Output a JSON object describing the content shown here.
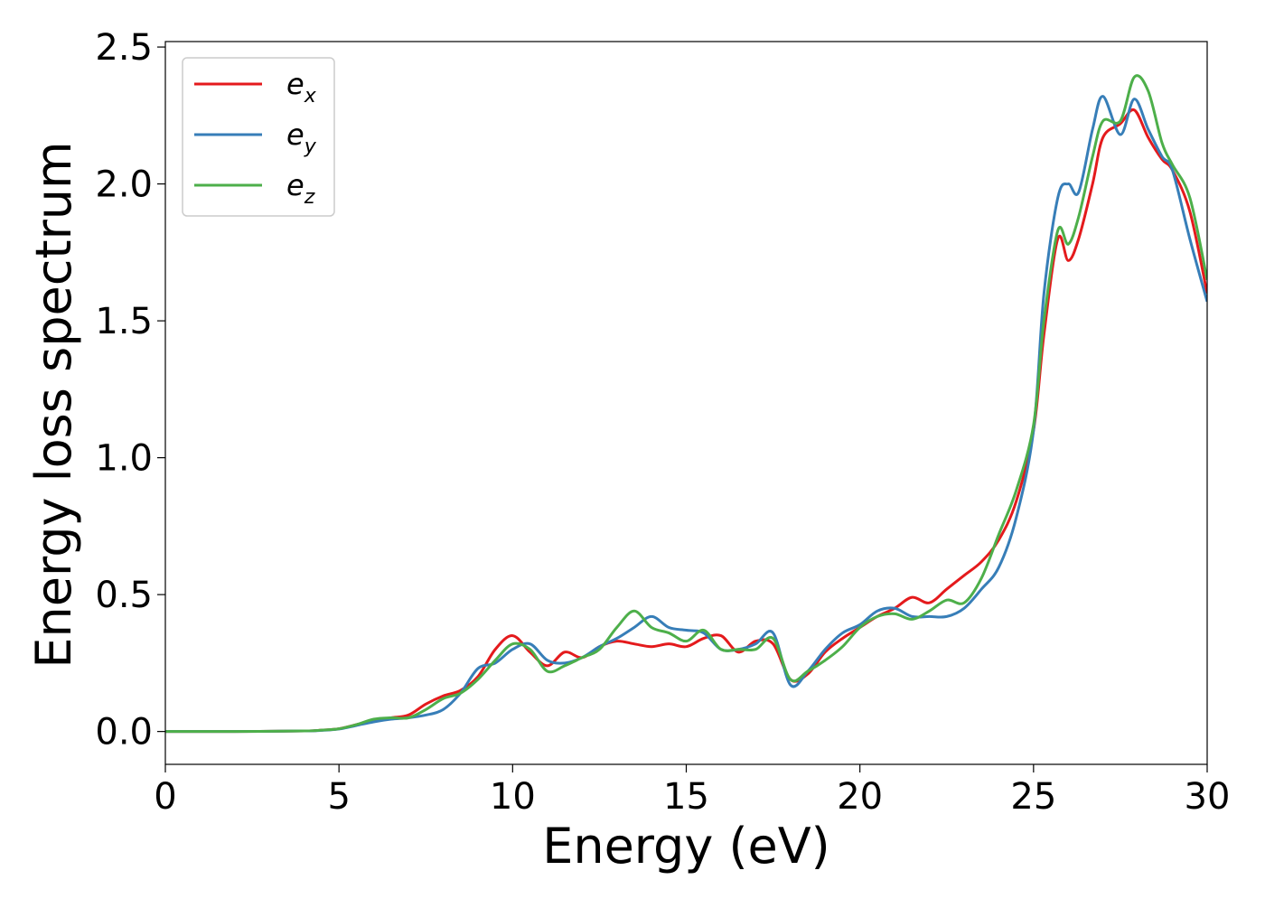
{
  "chart_data": {
    "type": "line",
    "xlabel": "Energy (eV)",
    "ylabel": "Energy loss spectrum",
    "xlim": [
      0,
      30
    ],
    "ylim": [
      -0.12,
      2.52
    ],
    "xticks": [
      0,
      5,
      10,
      15,
      20,
      25,
      30
    ],
    "xtick_labels": [
      "0",
      "5",
      "10",
      "15",
      "20",
      "25",
      "30"
    ],
    "yticks": [
      0.0,
      0.5,
      1.0,
      1.5,
      2.0,
      2.5
    ],
    "ytick_labels": [
      "0.0",
      "0.5",
      "1.0",
      "1.5",
      "2.0",
      "2.5"
    ],
    "grid": false,
    "legend_position": "top-left",
    "series": [
      {
        "name": "e",
        "subscript": "x",
        "color": "#e41a1c",
        "x": [
          0,
          2,
          4,
          4.5,
          5,
          5.5,
          6,
          6.5,
          7,
          7.5,
          8,
          8.5,
          9,
          9.5,
          10,
          10.5,
          11,
          11.5,
          12,
          12.5,
          13,
          13.5,
          14,
          14.5,
          15,
          15.5,
          16,
          16.5,
          17,
          17.5,
          18,
          18.5,
          19,
          19.5,
          20,
          20.5,
          21,
          21.5,
          22,
          22.5,
          23,
          23.5,
          24,
          24.5,
          25,
          25.3,
          25.7,
          26,
          26.3,
          26.7,
          27,
          27.5,
          27.9,
          28.3,
          28.7,
          29,
          29.5,
          30
        ],
        "y": [
          0.0,
          0.0,
          0.002,
          0.005,
          0.01,
          0.025,
          0.04,
          0.05,
          0.06,
          0.1,
          0.13,
          0.15,
          0.2,
          0.3,
          0.35,
          0.29,
          0.24,
          0.29,
          0.27,
          0.31,
          0.33,
          0.32,
          0.31,
          0.32,
          0.31,
          0.34,
          0.35,
          0.29,
          0.33,
          0.32,
          0.19,
          0.21,
          0.29,
          0.34,
          0.38,
          0.42,
          0.45,
          0.49,
          0.47,
          0.52,
          0.57,
          0.62,
          0.7,
          0.84,
          1.1,
          1.45,
          1.8,
          1.72,
          1.8,
          2.0,
          2.17,
          2.22,
          2.27,
          2.17,
          2.09,
          2.05,
          1.9,
          1.6
        ]
      },
      {
        "name": "e",
        "subscript": "y",
        "color": "#377eb8",
        "x": [
          0,
          2,
          4,
          4.5,
          5,
          5.5,
          6,
          6.5,
          7,
          7.5,
          8,
          8.5,
          9,
          9.5,
          10,
          10.5,
          11,
          11.5,
          12,
          12.5,
          13,
          13.5,
          14,
          14.5,
          15,
          15.5,
          16,
          16.5,
          17,
          17.5,
          18,
          18.5,
          19,
          19.5,
          20,
          20.5,
          21,
          21.5,
          22,
          22.5,
          23,
          23.5,
          24,
          24.5,
          25,
          25.3,
          25.7,
          26,
          26.3,
          26.7,
          27,
          27.5,
          27.9,
          28.3,
          28.7,
          29,
          29.5,
          30
        ],
        "y": [
          0.0,
          0.0,
          0.002,
          0.004,
          0.009,
          0.022,
          0.035,
          0.045,
          0.05,
          0.06,
          0.08,
          0.14,
          0.23,
          0.25,
          0.3,
          0.32,
          0.26,
          0.25,
          0.27,
          0.31,
          0.34,
          0.38,
          0.42,
          0.38,
          0.37,
          0.36,
          0.3,
          0.3,
          0.32,
          0.36,
          0.17,
          0.22,
          0.3,
          0.36,
          0.39,
          0.44,
          0.45,
          0.42,
          0.42,
          0.42,
          0.45,
          0.52,
          0.6,
          0.78,
          1.1,
          1.6,
          1.95,
          2.0,
          1.97,
          2.2,
          2.32,
          2.18,
          2.31,
          2.2,
          2.1,
          2.05,
          1.8,
          1.57
        ]
      },
      {
        "name": "e",
        "subscript": "z",
        "color": "#4daf4a",
        "x": [
          0,
          2,
          4,
          4.5,
          5,
          5.5,
          6,
          6.5,
          7,
          7.5,
          8,
          8.5,
          9,
          9.5,
          10,
          10.5,
          11,
          11.5,
          12,
          12.5,
          13,
          13.5,
          14,
          14.5,
          15,
          15.5,
          16,
          16.5,
          17,
          17.5,
          18,
          18.5,
          19,
          19.5,
          20,
          20.5,
          21,
          21.5,
          22,
          22.5,
          23,
          23.5,
          24,
          24.5,
          25,
          25.3,
          25.7,
          26,
          26.3,
          26.7,
          27,
          27.5,
          27.9,
          28.3,
          28.7,
          29,
          29.5,
          30
        ],
        "y": [
          0.0,
          0.0,
          0.002,
          0.005,
          0.01,
          0.025,
          0.045,
          0.05,
          0.05,
          0.08,
          0.12,
          0.14,
          0.19,
          0.26,
          0.32,
          0.3,
          0.22,
          0.24,
          0.27,
          0.3,
          0.38,
          0.44,
          0.38,
          0.36,
          0.33,
          0.37,
          0.3,
          0.3,
          0.3,
          0.34,
          0.19,
          0.22,
          0.26,
          0.31,
          0.38,
          0.42,
          0.43,
          0.41,
          0.44,
          0.48,
          0.47,
          0.56,
          0.72,
          0.88,
          1.12,
          1.5,
          1.83,
          1.78,
          1.88,
          2.1,
          2.23,
          2.23,
          2.39,
          2.34,
          2.15,
          2.07,
          1.95,
          1.65
        ]
      }
    ]
  }
}
